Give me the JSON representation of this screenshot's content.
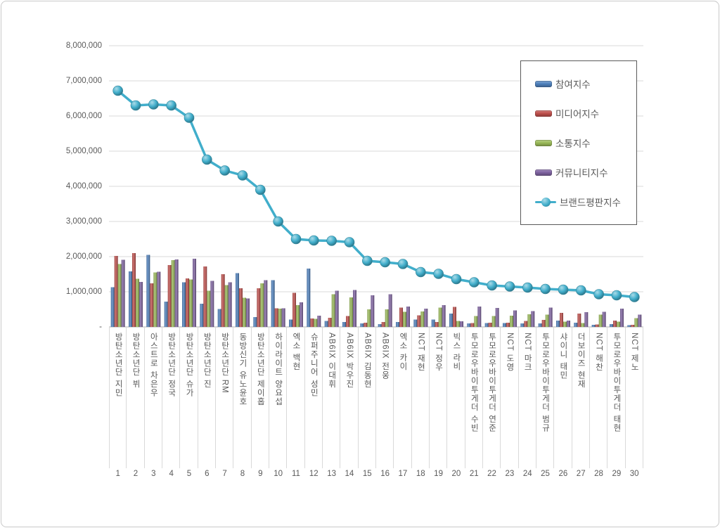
{
  "window": {
    "background": "#ffffff",
    "border_color": "#c9c9c9"
  },
  "y_axis": {
    "labels": [
      "8,000,000",
      "7,000,000",
      "6,000,000",
      "5,000,000",
      "4,000,000",
      "3,000,000",
      "2,000,000",
      "1,000,000",
      "-"
    ],
    "max": 8000000,
    "tick_interval": 1000000,
    "gridline_color": "#d9d9d9",
    "axis_line_color": "#bfbfbf",
    "label_color": "#595959"
  },
  "legend": {
    "border_color": "#595959",
    "items": [
      "참여지수",
      "미디어지수",
      "소통지수",
      "커뮤니티지수",
      "브랜드평판지수"
    ]
  },
  "chart_data": {
    "type": "bar+line",
    "title": "",
    "xlabel": "",
    "ylabel": "",
    "ylim": [
      0,
      8000000
    ],
    "grid": true,
    "legend_position": "top-right",
    "categories": [
      "방탄소년단 지민",
      "방탄소년단 뷔",
      "아스트로 차은우",
      "방탄소년단 정국",
      "방탄소년단 슈가",
      "방탄소년단 진",
      "방탄소년단 RM",
      "동방신기 유노윤호",
      "방탄소년단 제이홉",
      "하이라이트 양요섭",
      "엑소 백현",
      "슈퍼주니어 성민",
      "AB6IX 이대휘",
      "AB6IX 박우진",
      "AB6IX 김동현",
      "AB6IX 전웅",
      "엑소 카이",
      "NCT 재현",
      "NCT 정우",
      "빅스 라비",
      "투모로우바이투게더 수빈",
      "투모로우바이투게더 연준",
      "NCT 도영",
      "NCT 마크",
      "투모로우바이투게더 범규",
      "샤이니 태민",
      "더보이즈 현재",
      "NCT 해찬",
      "투모로우바이투게더 태현",
      "NCT 제노"
    ],
    "rank_labels": [
      "1",
      "2",
      "3",
      "4",
      "5",
      "6",
      "7",
      "8",
      "9",
      "10",
      "11",
      "12",
      "13",
      "14",
      "15",
      "16",
      "17",
      "18",
      "19",
      "20",
      "21",
      "22",
      "23",
      "24",
      "25",
      "26",
      "27",
      "28",
      "29",
      "30"
    ],
    "series": [
      {
        "name": "참여지수",
        "type": "bar",
        "color": "#4f81bd",
        "values": [
          1130000,
          1580000,
          2050000,
          720000,
          1270000,
          660000,
          510000,
          1530000,
          280000,
          1330000,
          210000,
          1660000,
          170000,
          140000,
          100000,
          80000,
          140000,
          210000,
          210000,
          380000,
          100000,
          110000,
          110000,
          100000,
          100000,
          180000,
          120000,
          60000,
          80000,
          50000
        ]
      },
      {
        "name": "미디어지수",
        "type": "bar",
        "color": "#c0504d",
        "values": [
          2020000,
          2100000,
          1240000,
          1760000,
          1380000,
          1720000,
          1500000,
          1100000,
          1100000,
          530000,
          970000,
          240000,
          260000,
          310000,
          120000,
          140000,
          550000,
          330000,
          140000,
          570000,
          110000,
          120000,
          120000,
          170000,
          200000,
          400000,
          380000,
          70000,
          180000,
          60000
        ]
      },
      {
        "name": "소통지수",
        "type": "bar",
        "color": "#9bbb59",
        "values": [
          1790000,
          1370000,
          1550000,
          1900000,
          1350000,
          1030000,
          1190000,
          830000,
          1240000,
          520000,
          620000,
          230000,
          930000,
          840000,
          500000,
          500000,
          430000,
          440000,
          550000,
          170000,
          310000,
          310000,
          320000,
          360000,
          350000,
          150000,
          110000,
          350000,
          150000,
          250000
        ]
      },
      {
        "name": "커뮤니티지수",
        "type": "bar",
        "color": "#8064a2",
        "values": [
          1910000,
          1280000,
          1570000,
          1920000,
          1940000,
          1310000,
          1270000,
          810000,
          1330000,
          530000,
          700000,
          320000,
          1030000,
          1050000,
          900000,
          930000,
          580000,
          520000,
          620000,
          160000,
          580000,
          540000,
          470000,
          450000,
          550000,
          180000,
          420000,
          430000,
          520000,
          350000
        ]
      },
      {
        "name": "브랜드평판지수",
        "type": "line",
        "color": "#41aecb",
        "values": [
          6720000,
          6300000,
          6330000,
          6300000,
          5950000,
          4760000,
          4450000,
          4310000,
          3900000,
          3000000,
          2500000,
          2460000,
          2450000,
          2410000,
          1880000,
          1840000,
          1790000,
          1560000,
          1510000,
          1360000,
          1270000,
          1180000,
          1150000,
          1120000,
          1080000,
          1060000,
          1040000,
          930000,
          900000,
          850000
        ]
      }
    ]
  }
}
